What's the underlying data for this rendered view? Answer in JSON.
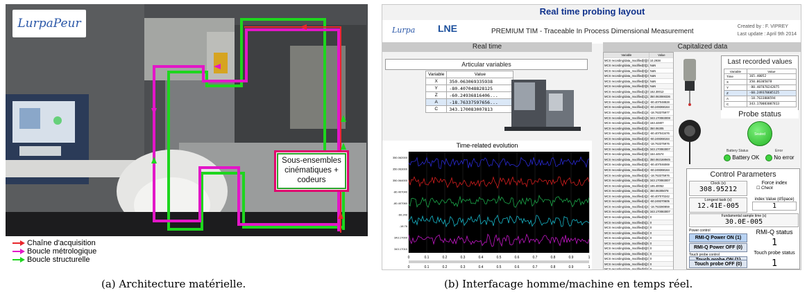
{
  "figure_a": {
    "logo_text": "Lurpa",
    "logo_text2": "Peur",
    "callout_lines": [
      "Sous-ensembles",
      "cinématiques +",
      "codeurs"
    ],
    "legend": [
      {
        "label": "Chaîne d'acquisition",
        "color": "#e8262b"
      },
      {
        "label": "Boucle métrologique",
        "color": "#e316c8"
      },
      {
        "label": "Boucle structurelle",
        "color": "#1ed61e"
      }
    ],
    "caption": "(a) Architecture matérielle."
  },
  "figure_b": {
    "title": "Real time probing layout",
    "logo1": "Lurpa",
    "logo2": "LNE",
    "subtitle": "PREMIUM TIM - Traceable In Process Dimensional Measurement",
    "credit_line1": "Created by : F. VIPREY",
    "credit_line2": "Last update : April 9th 2014",
    "section_left": "Real time",
    "section_right": "Capitalized data",
    "articular": {
      "title": "Articular variables",
      "col_variable": "Variable",
      "col_value": "Value",
      "rows": [
        {
          "var": "X",
          "val": "350.063069335938"
        },
        {
          "var": "Y",
          "val": "-80.407048828125"
        },
        {
          "var": "Z",
          "val": "-60.24936816406..."
        },
        {
          "var": "A",
          "val": "-18.76337597656..."
        },
        {
          "var": "C",
          "val": "343.170083007813"
        }
      ]
    },
    "graph": {
      "title": "Time-related evolution",
      "x_ticks": [
        "0",
        "0.1",
        "0.2",
        "0.3",
        "0.4",
        "0.5",
        "0.6",
        "0.7",
        "0.8",
        "0.9",
        "1"
      ],
      "y_labels": [
        "350.062000",
        "350.063000",
        "350.064000",
        "-80.407040",
        "-80.407060",
        "-60.249",
        "-18.76",
        "343.17000",
        "343.17010"
      ],
      "series_colors": [
        "#2a2ad6",
        "#d41e1e",
        "#1ca84a",
        "#17b6c9",
        "#c517c9"
      ]
    },
    "cap_table": {
      "col1": "Variable",
      "col2": "Value",
      "rows": [
        [
          "MCS recording/data_modified[0][0]",
          "10.2938"
        ],
        [
          "MCS recording/data_modified[0][1]",
          "NaN"
        ],
        [
          "MCS recording/data_modified[0][2]",
          "NaN"
        ],
        [
          "MCS recording/data_modified[0][3]",
          "NaN"
        ],
        [
          "MCS recording/data_modified[0][4]",
          "NaN"
        ],
        [
          "MCS recording/data_modified[0][5]",
          "NaN"
        ],
        [
          "MCS recording/data_modified[1][0]",
          "162.30012"
        ],
        [
          "MCS recording/data_modified[1][1]",
          "350.063069336"
        ],
        [
          "MCS recording/data_modified[1][2]",
          "-80.407048828"
        ],
        [
          "MCS recording/data_modified[1][3]",
          "-60.249368164"
        ],
        [
          "MCS recording/data_modified[1][4]",
          "-18.763375977"
        ],
        [
          "MCS recording/data_modified[1][5]",
          "343.170083008"
        ],
        [
          "MCS recording/data_modified[2][0]",
          "163.44807"
        ],
        [
          "MCS recording/data_modified[2][1]",
          "350.06305"
        ],
        [
          "MCS recording/data_modified[2][2]",
          "-80.407043476"
        ],
        [
          "MCS recording/data_modified[2][3]",
          "-60.249368164"
        ],
        [
          "MCS recording/data_modified[2][4]",
          "-18.763375976"
        ],
        [
          "MCS recording/data_modified[2][5]",
          "343.170083007"
        ],
        [
          "MCS recording/data_modified[3][0]",
          "164.44574"
        ],
        [
          "MCS recording/data_modified[3][1]",
          "350.063168945"
        ],
        [
          "MCS recording/data_modified[3][2]",
          "-80.407046069"
        ],
        [
          "MCS recording/data_modified[3][3]",
          "-60.249368164"
        ],
        [
          "MCS recording/data_modified[3][4]",
          "-18.763375976"
        ],
        [
          "MCS recording/data_modified[3][5]",
          "343.170083007"
        ],
        [
          "MCS recording/data_modified[4][0]",
          "165.40052"
        ],
        [
          "MCS recording/data_modified[4][1]",
          "350.06305078"
        ],
        [
          "MCS recording/data_modified[4][2]",
          "-80.407070242"
        ],
        [
          "MCS recording/data_modified[4][3]",
          "-60.249370605"
        ],
        [
          "MCS recording/data_modified[4][4]",
          "-18.763380859"
        ],
        [
          "MCS recording/data_modified[4][5]",
          "343.170083007"
        ],
        [
          "MCS recording/data_modified[5][0]",
          "0"
        ],
        [
          "MCS recording/data_modified[5][1]",
          "0"
        ],
        [
          "MCS recording/data_modified[5][2]",
          "0"
        ],
        [
          "MCS recording/data_modified[5][3]",
          "0"
        ],
        [
          "MCS recording/data_modified[5][4]",
          "0"
        ],
        [
          "MCS recording/data_modified[5][5]",
          "0"
        ],
        [
          "MCS recording/data_modified[6][0]",
          "0"
        ],
        [
          "MCS recording/data_modified[6][1]",
          "0"
        ],
        [
          "MCS recording/data_modified[6][2]",
          "0"
        ],
        [
          "MCS recording/data_modified[6][3]",
          "0"
        ],
        [
          "MCS recording/data_modified[6][4]",
          "0"
        ]
      ]
    },
    "last_values": {
      "title": "Last recorded values",
      "col_variable": "Variable",
      "col_value": "Value",
      "rows": [
        {
          "var": "Time",
          "val": "165.40052"
        },
        {
          "var": "X",
          "val": "350.06305078"
        },
        {
          "var": "Y",
          "val": "-80.407070242875"
        },
        {
          "var": "Z",
          "val": "-60.249370605125"
        },
        {
          "var": "A",
          "val": "-18.7633808594"
        },
        {
          "var": "C",
          "val": "343.170083007813"
        }
      ]
    },
    "probe_status": {
      "title": "Probe status",
      "seated_label": "Seated",
      "battery_label": "Battery Status",
      "battery_value": "Battery OK",
      "error_label": "Error",
      "error_value": "No error"
    },
    "control": {
      "title": "Control Parameters",
      "clock_label": "Clock (s)",
      "clock_value": "308.95212",
      "force_label": "Force index",
      "check_label": "Check",
      "longest_label": "Longest task (s)",
      "longest_value": "12.41E-005",
      "index_label": "index Value (dSpace)",
      "index_value": "1",
      "fund_label": "Fundamental sample time (s)",
      "fund_value": "30.0E-005",
      "power_label": "Power control",
      "rmi_on": "RMI-Q Power ON (1)",
      "rmi_off": "RMI-Q Power OFF (0)",
      "rmi_status_label": "RMI-Q status",
      "rmi_status_value": "1",
      "touch_label": "Touch probe control",
      "touch_on": "Touch probe ON (1)",
      "touch_off": "Touch probe OFF (0)",
      "touch_status_label": "Touch probe status",
      "touch_status_value": "1"
    },
    "caption": "(b) Interfacage homme/machine en temps réel."
  }
}
